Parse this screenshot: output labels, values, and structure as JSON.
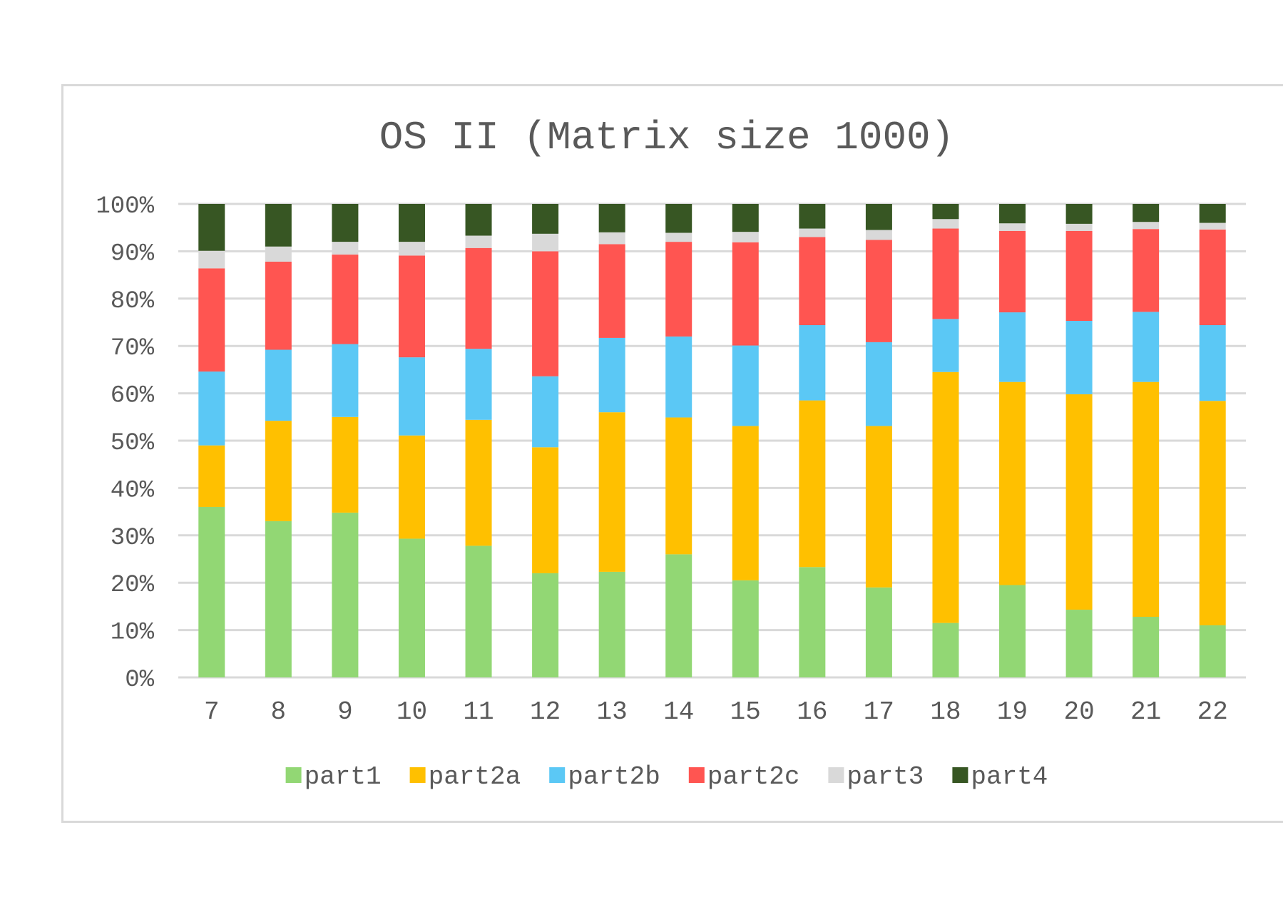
{
  "chart_data": {
    "type": "bar",
    "stacked": true,
    "percent_stacked": true,
    "title": "OS II (Matrix size 1000)",
    "xlabel": "",
    "ylabel": "",
    "ylim": [
      0,
      100
    ],
    "yticks": [
      "0%",
      "10%",
      "20%",
      "30%",
      "40%",
      "50%",
      "60%",
      "70%",
      "80%",
      "90%",
      "100%"
    ],
    "grid": true,
    "legend_position": "bottom",
    "categories": [
      "7",
      "8",
      "9",
      "10",
      "11",
      "12",
      "13",
      "14",
      "15",
      "16",
      "17",
      "18",
      "19",
      "20",
      "21",
      "22"
    ],
    "series": [
      {
        "name": "part1",
        "color": "#92d774",
        "values": [
          36,
          33,
          34.8,
          29.3,
          27.8,
          22,
          22.3,
          26,
          20.5,
          23.3,
          19,
          11.5,
          19.5,
          14.3,
          12.8,
          11
        ]
      },
      {
        "name": "part2a",
        "color": "#ffc000",
        "values": [
          13,
          21.2,
          20.2,
          21.8,
          26.6,
          26.6,
          33.7,
          28.9,
          32.6,
          35.2,
          34.1,
          53,
          42.9,
          45.5,
          49.6,
          47.4
        ]
      },
      {
        "name": "part2b",
        "color": "#5bc8f5",
        "values": [
          15.6,
          15,
          15.4,
          16.5,
          15,
          15,
          15.7,
          17.1,
          17,
          15.9,
          17.7,
          11.2,
          14.7,
          15.5,
          14.8,
          16
        ]
      },
      {
        "name": "part2c",
        "color": "#ff5551",
        "values": [
          21.8,
          18.6,
          18.9,
          21.5,
          21.3,
          26.4,
          19.8,
          20,
          21.8,
          18.6,
          21.6,
          19.1,
          17.2,
          19,
          17.5,
          20.2
        ]
      },
      {
        "name": "part3",
        "color": "#d9d9d9",
        "values": [
          3.7,
          3.2,
          2.7,
          2.9,
          2.6,
          3.7,
          2.5,
          1.9,
          2.2,
          1.8,
          2.1,
          2,
          1.6,
          1.5,
          1.5,
          1.4
        ]
      },
      {
        "name": "part4",
        "color": "#375623",
        "values": [
          9.9,
          9,
          8,
          8,
          6.7,
          6.3,
          6,
          6.1,
          5.9,
          5.2,
          5.5,
          3.2,
          4.1,
          4.2,
          3.8,
          4
        ]
      }
    ]
  }
}
